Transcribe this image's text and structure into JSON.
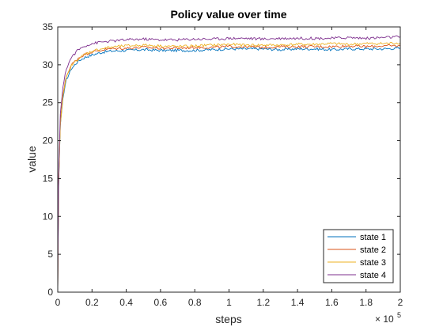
{
  "chart_data": {
    "type": "line",
    "title": "Policy value over time",
    "xlabel": "steps",
    "ylabel": "value",
    "x_exponent_base": "× 10",
    "x_exponent_power": "5",
    "xlim": [
      0,
      200000
    ],
    "ylim": [
      0,
      35
    ],
    "x_ticks": [
      0,
      20000,
      40000,
      60000,
      80000,
      100000,
      120000,
      140000,
      160000,
      180000,
      200000
    ],
    "x_tick_labels": [
      "0",
      "0.2",
      "0.4",
      "0.6",
      "0.8",
      "1",
      "1.2",
      "1.4",
      "1.6",
      "1.8",
      "2"
    ],
    "y_ticks": [
      0,
      5,
      10,
      15,
      20,
      25,
      30,
      35
    ],
    "y_tick_labels": [
      "0",
      "5",
      "10",
      "15",
      "20",
      "25",
      "30",
      "35"
    ],
    "grid": false,
    "legend_position": "bottom-right",
    "series": [
      {
        "name": "state 1",
        "color": "#0072BD",
        "x": [
          0,
          500,
          1500,
          3000,
          5000,
          8000,
          12000,
          16000,
          20000,
          25000,
          30000,
          40000,
          50000,
          60000,
          70000,
          80000,
          90000,
          100000,
          110000,
          120000,
          130000,
          140000,
          150000,
          160000,
          170000,
          180000,
          190000,
          200000
        ],
        "y": [
          0,
          14,
          22,
          25.5,
          28,
          29.5,
          30.5,
          31,
          31.3,
          31.6,
          31.8,
          31.9,
          32.0,
          31.9,
          31.9,
          31.9,
          32.0,
          32.1,
          32.1,
          32.1,
          32.0,
          32.1,
          32.1,
          32.0,
          32.1,
          32.1,
          32.1,
          32.2
        ]
      },
      {
        "name": "state 2",
        "color": "#D95319",
        "x": [
          0,
          500,
          1500,
          3000,
          5000,
          8000,
          12000,
          16000,
          20000,
          25000,
          30000,
          40000,
          50000,
          60000,
          70000,
          80000,
          90000,
          100000,
          110000,
          120000,
          130000,
          140000,
          150000,
          160000,
          170000,
          180000,
          190000,
          200000
        ],
        "y": [
          0,
          14.5,
          22.5,
          26,
          28.5,
          30,
          30.9,
          31.4,
          31.7,
          31.9,
          32.1,
          32.2,
          32.3,
          32.2,
          32.2,
          32.3,
          32.3,
          32.4,
          32.4,
          32.3,
          32.4,
          32.4,
          32.4,
          32.4,
          32.5,
          32.4,
          32.5,
          32.5
        ]
      },
      {
        "name": "state 3",
        "color": "#EDB120",
        "x": [
          0,
          500,
          1500,
          3000,
          5000,
          8000,
          12000,
          16000,
          20000,
          25000,
          30000,
          40000,
          50000,
          60000,
          70000,
          80000,
          90000,
          100000,
          110000,
          120000,
          130000,
          140000,
          150000,
          160000,
          170000,
          180000,
          190000,
          200000
        ],
        "y": [
          0,
          14,
          22,
          25.8,
          28.3,
          29.9,
          30.8,
          31.4,
          31.8,
          32.1,
          32.3,
          32.5,
          32.6,
          32.5,
          32.4,
          32.5,
          32.6,
          32.7,
          32.6,
          32.6,
          32.6,
          32.7,
          32.7,
          32.8,
          32.7,
          32.8,
          32.8,
          32.9
        ]
      },
      {
        "name": "state 4",
        "color": "#7E2F8E",
        "x": [
          0,
          500,
          1500,
          3000,
          5000,
          8000,
          12000,
          16000,
          20000,
          25000,
          30000,
          40000,
          50000,
          60000,
          70000,
          80000,
          90000,
          100000,
          110000,
          120000,
          130000,
          140000,
          150000,
          160000,
          170000,
          180000,
          190000,
          200000
        ],
        "y": [
          0,
          15,
          23.5,
          27,
          29.5,
          31,
          32,
          32.5,
          32.8,
          33.0,
          33.1,
          33.3,
          33.4,
          33.3,
          33.3,
          33.4,
          33.4,
          33.5,
          33.5,
          33.4,
          33.5,
          33.5,
          33.5,
          33.5,
          33.6,
          33.5,
          33.6,
          33.7
        ]
      }
    ]
  }
}
